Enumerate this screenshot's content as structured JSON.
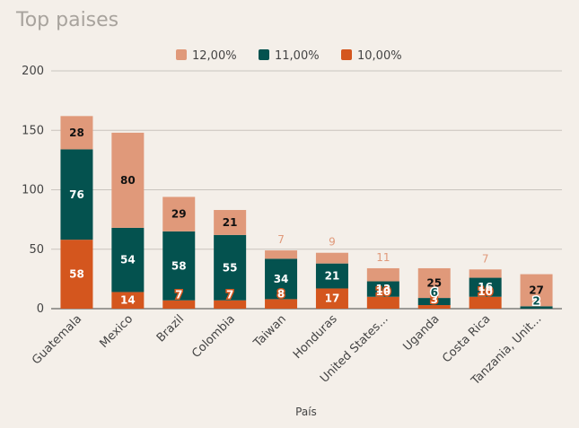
{
  "chart_data": {
    "type": "bar",
    "stacked": true,
    "title": "Top paises",
    "xlabel": "País",
    "ylabel": "",
    "ylim": [
      0,
      200
    ],
    "yticks": [
      0,
      50,
      100,
      150,
      200
    ],
    "grid": true,
    "legend_position": "top",
    "categories": [
      "Guatemala",
      "Mexico",
      "Brazil",
      "Colombia",
      "Taiwan",
      "Honduras",
      "United States...",
      "Uganda",
      "Costa Rica",
      "Tanzania, Unit..."
    ],
    "series": [
      {
        "name": "12,00%",
        "color": "#e0997a",
        "values": [
          28,
          80,
          29,
          21,
          7,
          9,
          11,
          25,
          7,
          27
        ]
      },
      {
        "name": "11,00%",
        "color": "#04524f",
        "values": [
          76,
          54,
          58,
          55,
          34,
          21,
          13,
          6,
          16,
          2
        ]
      },
      {
        "name": "10,00%",
        "color": "#d4561e",
        "values": [
          58,
          14,
          7,
          7,
          8,
          17,
          10,
          3,
          10,
          0
        ]
      }
    ]
  }
}
